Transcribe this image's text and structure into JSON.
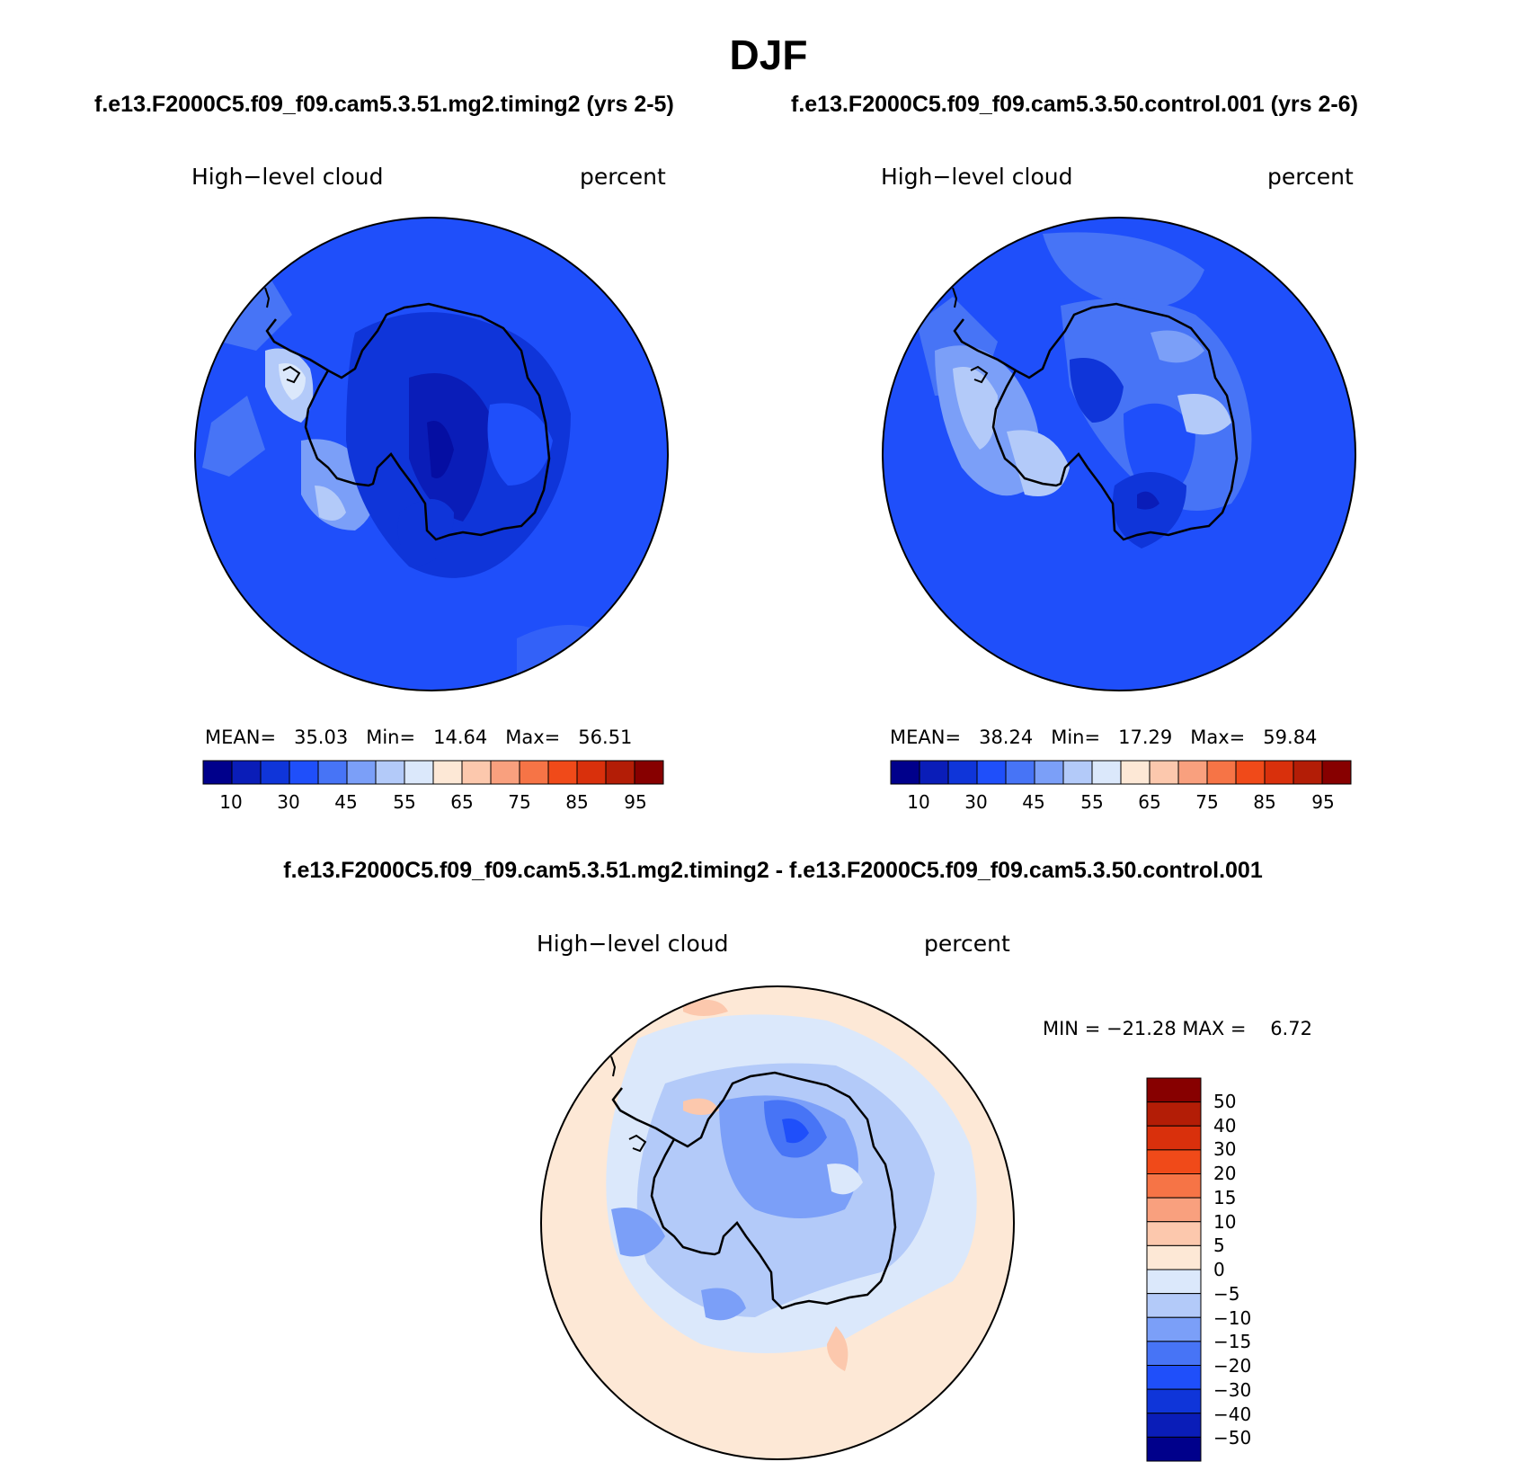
{
  "title": "DJF",
  "runs": {
    "test": "f.e13.F2000C5.f09_f09.cam5.3.51.mg2.timing2 (yrs 2-5)",
    "control": "f.e13.F2000C5.f09_f09.cam5.3.50.control.001 (yrs 2-6)",
    "difference": "f.e13.F2000C5.f09_f09.cam5.3.51.mg2.timing2 - f.e13.F2000C5.f09_f09.cam5.3.50.control.001"
  },
  "panels": {
    "test": {
      "variable": "High−level cloud",
      "units": "percent",
      "stats_text": "MEAN=   35.03   Min=   14.64   Max=   56.51"
    },
    "control": {
      "variable": "High−level cloud",
      "units": "percent",
      "stats_text": "MEAN=   38.24   Min=   17.29   Max=   59.84"
    },
    "difference": {
      "variable": "High−level cloud",
      "units": "percent",
      "stats_text": "MIN = −21.28 MAX =    6.72"
    }
  },
  "colorbar_abs": {
    "colors": [
      "#00008b",
      "#0a1db8",
      "#0f35d9",
      "#1f4ffa",
      "#4774f6",
      "#7b9ff8",
      "#b3caf9",
      "#dbe8fb",
      "#fde8d6",
      "#fcc8ad",
      "#f9a07e",
      "#f67446",
      "#f04a19",
      "#d9300c",
      "#b31d06",
      "#870000"
    ],
    "labels": [
      "10",
      "30",
      "45",
      "55",
      "65",
      "75",
      "85",
      "95"
    ]
  },
  "colorbar_diff": {
    "colors_top_to_bottom": [
      "#870000",
      "#b31d06",
      "#d9300c",
      "#f04a19",
      "#f67446",
      "#f9a07e",
      "#fcc8ad",
      "#fde8d6",
      "#dbe8fb",
      "#b3caf9",
      "#7b9ff8",
      "#4774f6",
      "#1f4ffa",
      "#0f35d9",
      "#0a1db8",
      "#00008b"
    ],
    "labels": [
      "50",
      "40",
      "30",
      "20",
      "15",
      "10",
      "5",
      "0",
      "−5",
      "−10",
      "−15",
      "−20",
      "−30",
      "−40",
      "−50"
    ]
  }
}
